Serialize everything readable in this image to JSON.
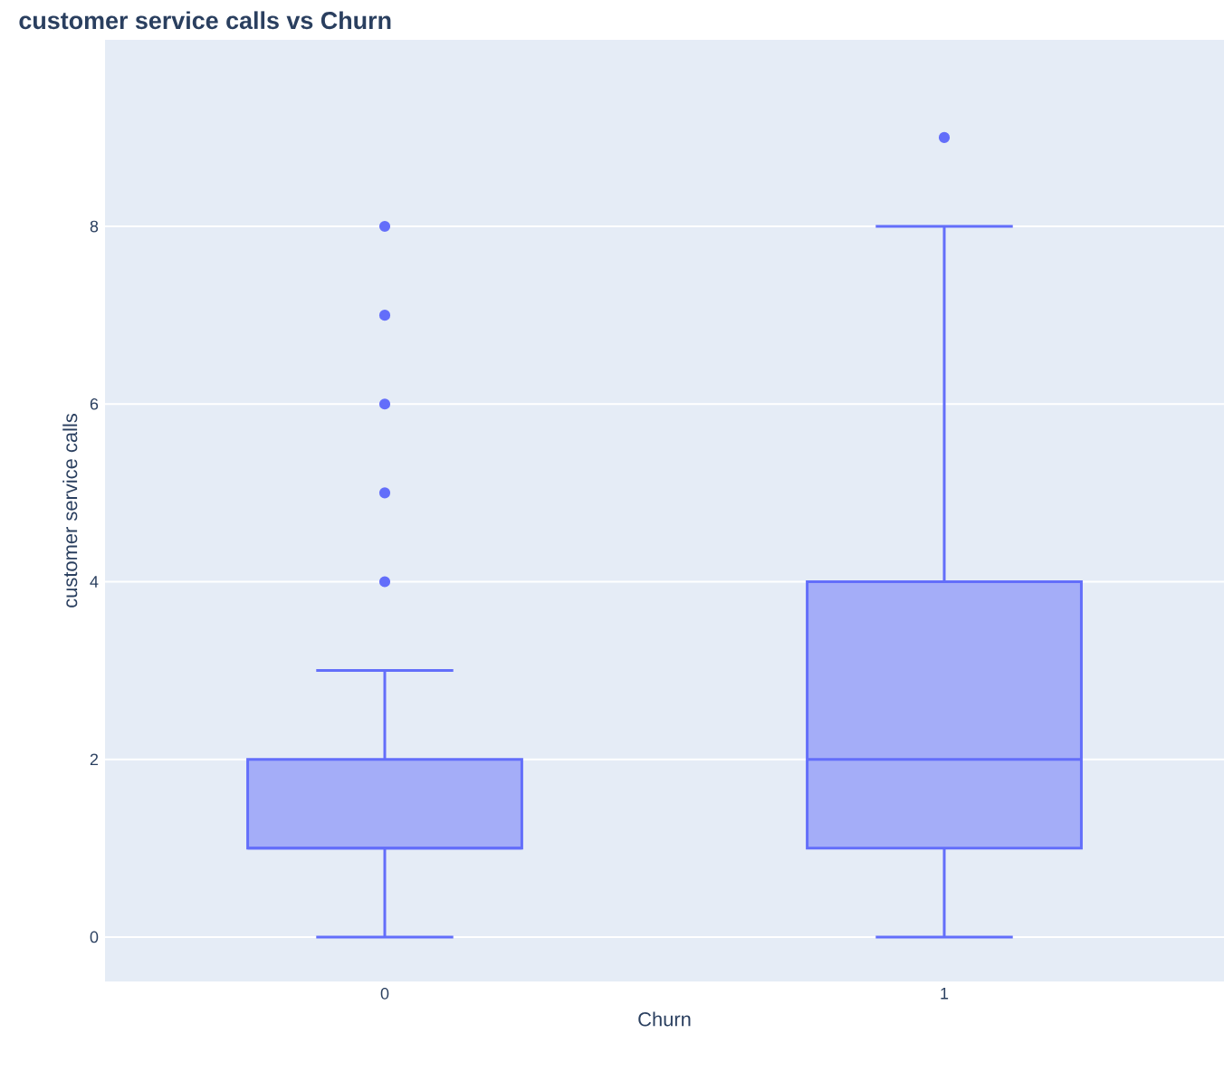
{
  "chart_data": {
    "type": "box",
    "title": "customer service calls vs Churn",
    "xlabel": "Churn",
    "ylabel": "customer service calls",
    "categories": [
      "0",
      "1"
    ],
    "series": [
      {
        "color": "#636efa",
        "boxes": [
          {
            "low": 0,
            "q1": 1,
            "median": 1,
            "q3": 2,
            "high": 3,
            "outliers": [
              4,
              5,
              6,
              7,
              8
            ]
          },
          {
            "low": 0,
            "q1": 1,
            "median": 2,
            "q3": 4,
            "high": 8,
            "outliers": [
              9
            ]
          }
        ]
      }
    ],
    "ylim": [
      -0.5,
      10.1
    ],
    "yticks": [
      0,
      2,
      4,
      6,
      8
    ],
    "grid": "y"
  }
}
